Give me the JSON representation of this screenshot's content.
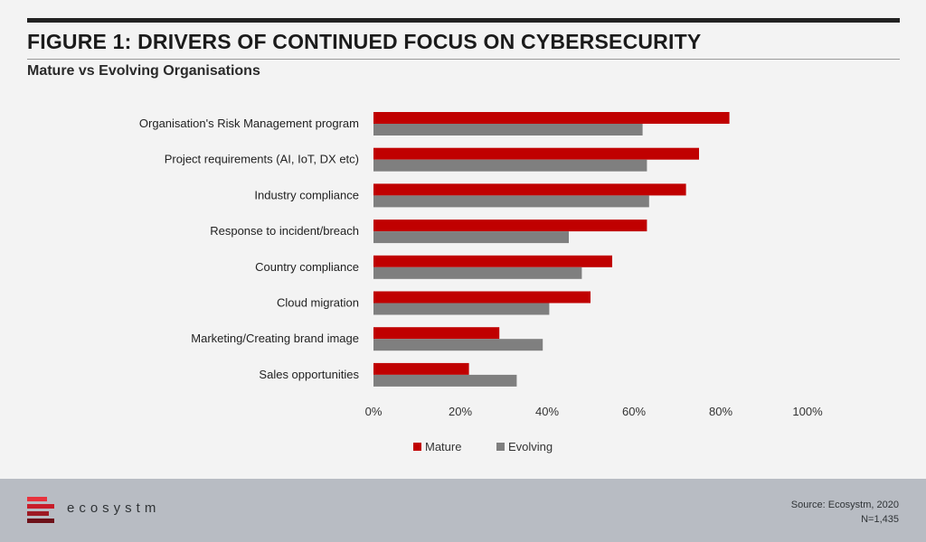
{
  "header": {
    "title": "FIGURE 1: DRIVERS OF CONTINUED FOCUS ON CYBERSECURITY",
    "subtitle": "Mature vs Evolving Organisations"
  },
  "chart_data": {
    "type": "bar",
    "orientation": "horizontal",
    "title": "FIGURE 1: DRIVERS OF CONTINUED FOCUS ON CYBERSECURITY",
    "subtitle": "Mature vs Evolving Organisations",
    "categories": [
      "Organisation's Risk Management program",
      "Project requirements (AI, IoT, DX etc)",
      "Industry compliance",
      "Response to incident/breach",
      "Country compliance",
      "Cloud migration",
      "Marketing/Creating brand image",
      "Sales opportunities"
    ],
    "series": [
      {
        "name": "Mature",
        "color": "#c00000",
        "values": [
          82,
          75,
          72,
          63,
          55,
          50,
          29,
          22
        ]
      },
      {
        "name": "Evolving",
        "color": "#7f7f7f",
        "values": [
          62,
          63,
          63.5,
          45,
          48,
          40.5,
          39,
          33
        ]
      }
    ],
    "xlim": [
      0,
      100
    ],
    "xticks": [
      "0%",
      "20%",
      "40%",
      "60%",
      "80%",
      "100%"
    ],
    "xticks_values": [
      0,
      20,
      40,
      60,
      80,
      100
    ],
    "grid": false,
    "legend": "bottom"
  },
  "footer": {
    "logo_text": "ecosystm",
    "source": "Source: Ecosystm, 2020",
    "sample": "N=1,435"
  }
}
